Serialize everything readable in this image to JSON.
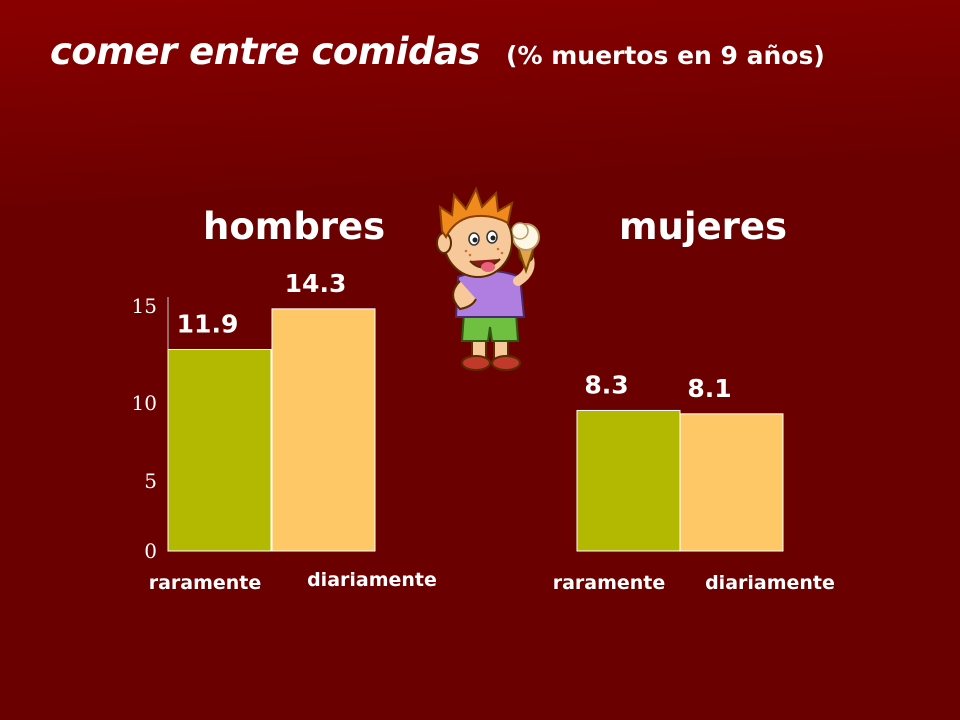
{
  "title": "comer entre comidas",
  "subtitle": "(% muertos en 9 años)",
  "colors": {
    "background": "#6b0000",
    "background_top": "#8a0000",
    "bar_raramente": "#b3b800",
    "bar_diariamente": "#ffc866",
    "text": "#ffffff"
  },
  "chart_data": [
    {
      "type": "bar",
      "title": "hombres",
      "categories": [
        "raramente",
        "diariamente"
      ],
      "values": [
        11.9,
        14.3
      ],
      "ylim": [
        0,
        15
      ],
      "yticks": [
        0,
        5,
        10,
        15
      ],
      "grid": false,
      "show_axis": true
    },
    {
      "type": "bar",
      "title": "mujeres",
      "categories": [
        "raramente",
        "diariamente"
      ],
      "values": [
        8.3,
        8.1
      ],
      "ylim": [
        0,
        15
      ],
      "grid": false,
      "show_axis": false
    }
  ],
  "illustration": {
    "icon": "boy-eating-ice-cream-icon"
  }
}
